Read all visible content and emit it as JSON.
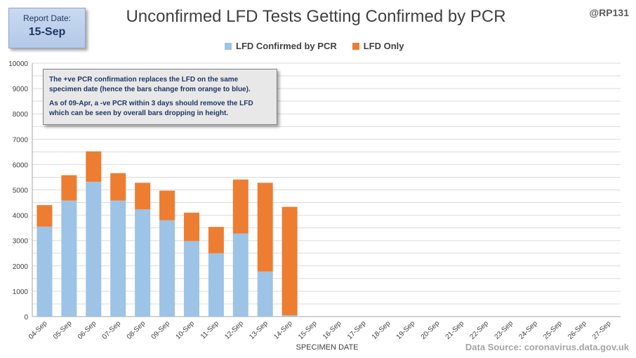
{
  "report": {
    "label": "Report Date:",
    "date": "15-Sep"
  },
  "handle": "@RP131",
  "source": "Data Source: coronavirus.data.gov.uk",
  "note": {
    "line1": "The +ve PCR confirmation replaces the LFD on the same specimen date (hence the bars change from orange to blue).",
    "line2": "As of 09-Apr, a -ve PCR within 3 days should remove the LFD which can be seen by overall bars dropping  in height."
  },
  "colors": {
    "confirmed": "#9dc3e6",
    "lfd_only": "#ed7d31",
    "grid": "#d9d9d9"
  },
  "chart_data": {
    "type": "bar",
    "stacked": true,
    "title": "Unconfirmed LFD Tests Getting Confirmed by PCR",
    "xlabel": "SPECIMEN DATE",
    "ylabel": "",
    "ylim": [
      0,
      10000
    ],
    "yticks": [
      0,
      1000,
      2000,
      3000,
      4000,
      5000,
      6000,
      7000,
      8000,
      9000,
      10000
    ],
    "grid": true,
    "legend": "top-center",
    "categories": [
      "04-Sep",
      "05-Sep",
      "06-Sep",
      "07-Sep",
      "08-Sep",
      "09-Sep",
      "10-Sep",
      "11-Sep",
      "12-Sep",
      "13-Sep",
      "14-Sep",
      "15-Sep",
      "16-Sep",
      "17-Sep",
      "18-Sep",
      "19-Sep",
      "20-Sep",
      "21-Sep",
      "22-Sep",
      "23-Sep",
      "24-Sep",
      "25-Sep",
      "26-Sep",
      "27-Sep"
    ],
    "series": [
      {
        "name": "LFD Confirmed by PCR",
        "values": [
          3550,
          4580,
          5320,
          4580,
          4230,
          3800,
          2980,
          2500,
          3280,
          1780,
          50,
          null,
          null,
          null,
          null,
          null,
          null,
          null,
          null,
          null,
          null,
          null,
          null,
          null
        ]
      },
      {
        "name": "LFD Only",
        "values": [
          850,
          1000,
          1200,
          1080,
          1050,
          1170,
          1120,
          1040,
          2130,
          3500,
          4280,
          null,
          null,
          null,
          null,
          null,
          null,
          null,
          null,
          null,
          null,
          null,
          null,
          null
        ]
      }
    ]
  }
}
